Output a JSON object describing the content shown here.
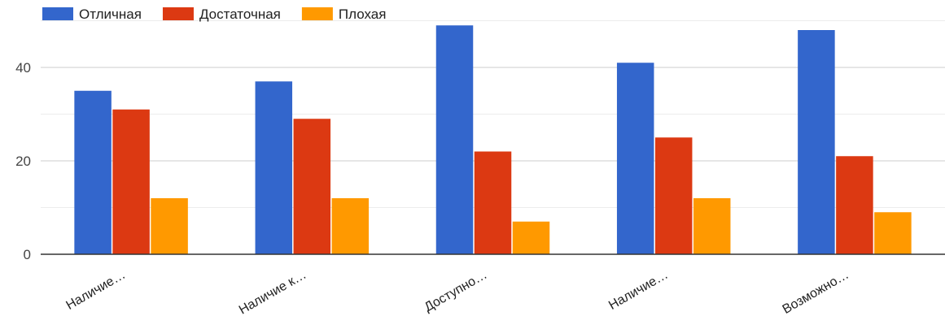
{
  "chart_data": {
    "type": "bar",
    "categories": [
      "Наличие…",
      "Наличие к…",
      "Доступно…",
      "Наличие…",
      "Возможно…"
    ],
    "series": [
      {
        "name": "Отличная",
        "color": "#3366cc",
        "values": [
          35,
          37,
          49,
          41,
          48
        ]
      },
      {
        "name": "Достаточная",
        "color": "#dc3912",
        "values": [
          31,
          29,
          22,
          25,
          21
        ]
      },
      {
        "name": "Плохая",
        "color": "#ff9900",
        "values": [
          12,
          12,
          7,
          12,
          9
        ]
      }
    ],
    "y_ticks": [
      0,
      20,
      40
    ],
    "ylim": [
      0,
      50
    ],
    "grid": true,
    "legend_position": "top-left",
    "title": "",
    "xlabel": "",
    "ylabel": ""
  }
}
